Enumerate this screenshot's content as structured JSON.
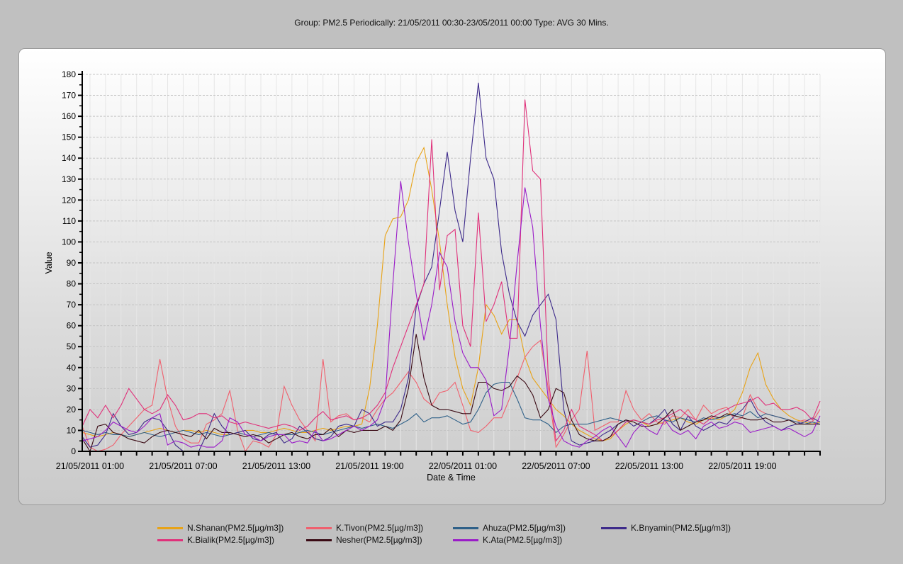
{
  "title": "Group:  PM2.5 Periodically:  21/05/2011 00:30-23/05/2011 00:00   Type:  AVG 30 Mins.",
  "chart_data": {
    "type": "line",
    "title": "Group:  PM2.5 Periodically:  21/05/2011 00:30-23/05/2011 00:00   Type:  AVG 30 Mins.",
    "xlabel": "Date & Time",
    "ylabel": "Value",
    "ylim": [
      0,
      180
    ],
    "y_major_step": 10,
    "y_minor_step": 5,
    "x_start": "21/05/2011 00:30",
    "x_interval_minutes": 30,
    "x_points": 96,
    "x_tick_labels": [
      {
        "index": 1,
        "label": "21/05/2011 01:00"
      },
      {
        "index": 13,
        "label": "21/05/2011 07:00"
      },
      {
        "index": 25,
        "label": "21/05/2011 13:00"
      },
      {
        "index": 37,
        "label": "21/05/2011 19:00"
      },
      {
        "index": 49,
        "label": "22/05/2011 01:00"
      },
      {
        "index": 61,
        "label": "22/05/2011 07:00"
      },
      {
        "index": 73,
        "label": "22/05/2011 13:00"
      },
      {
        "index": 85,
        "label": "22/05/2011 19:00"
      }
    ],
    "y_tick_labels": [
      "0",
      "10",
      "20",
      "30",
      "40",
      "50",
      "60",
      "70",
      "80",
      "90",
      "100",
      "110",
      "120",
      "130",
      "140",
      "150",
      "160",
      "170",
      "180"
    ],
    "grid": true,
    "legend_position": "bottom",
    "series": [
      {
        "name": "N.Shanan(PM2.5[µg/m3])",
        "color": "#e8a317",
        "values": [
          9,
          8,
          7,
          8,
          9,
          8,
          7,
          8,
          9,
          10,
          11,
          10,
          9,
          10,
          10,
          9,
          10,
          9,
          8,
          8,
          9,
          10,
          10,
          9,
          9,
          10,
          11,
          10,
          9,
          9,
          10,
          11,
          10,
          11,
          12,
          12,
          13,
          30,
          60,
          103,
          111,
          112,
          120,
          138,
          145,
          125,
          100,
          70,
          45,
          30,
          22,
          40,
          70,
          65,
          56,
          63,
          63,
          45,
          35,
          30,
          25,
          20,
          17,
          13,
          10,
          8,
          6,
          5,
          6,
          10,
          13,
          15,
          14,
          12,
          13,
          14,
          15,
          16,
          14,
          13,
          15,
          16,
          15,
          17,
          20,
          28,
          40,
          47,
          32,
          25,
          20,
          17,
          15,
          14,
          13,
          14
        ]
      },
      {
        "name": "K.Tivon(PM2.5[µg/m3])",
        "color": "#f0606e",
        "values": [
          12,
          2,
          0,
          1,
          3,
          8,
          12,
          16,
          20,
          22,
          44,
          25,
          12,
          6,
          4,
          4,
          13,
          15,
          18,
          29,
          10,
          0,
          5,
          4,
          2,
          8,
          31,
          22,
          15,
          10,
          5,
          44,
          14,
          17,
          18,
          15,
          16,
          14,
          20,
          25,
          28,
          33,
          38,
          33,
          25,
          22,
          28,
          29,
          33,
          22,
          10,
          9,
          12,
          16,
          16,
          25,
          35,
          45,
          50,
          53,
          30,
          2,
          8,
          15,
          20,
          48,
          10,
          12,
          14,
          14,
          29,
          20,
          15,
          18,
          14,
          13,
          17,
          16,
          20,
          15,
          22,
          18,
          20,
          21,
          15,
          16,
          27,
          20,
          18,
          17,
          16,
          15,
          14,
          15,
          14,
          20
        ]
      },
      {
        "name": "Ahuza(PM2.5[µg/m3])",
        "color": "#2e6088",
        "values": [
          10,
          9,
          8,
          9,
          8,
          8,
          7,
          8,
          9,
          8,
          7,
          8,
          9,
          10,
          9,
          8,
          9,
          8,
          7,
          8,
          9,
          8,
          7,
          8,
          9,
          8,
          8,
          8,
          9,
          10,
          9,
          8,
          9,
          10,
          11,
          12,
          11,
          12,
          13,
          12,
          11,
          13,
          15,
          18,
          14,
          16,
          16,
          17,
          15,
          13,
          14,
          20,
          28,
          32,
          33,
          33,
          25,
          16,
          15,
          15,
          13,
          9,
          12,
          13,
          13,
          13,
          14,
          15,
          16,
          15,
          14,
          15,
          14,
          16,
          17,
          15,
          14,
          16,
          15,
          14,
          16,
          15,
          16,
          17,
          18,
          17,
          19,
          16,
          18,
          17,
          16,
          15,
          14,
          13,
          14,
          13
        ]
      },
      {
        "name": "K.Bnyamin(PM2.5[µg/m3])",
        "color": "#3d2a8a",
        "values": [
          7,
          2,
          3,
          8,
          18,
          12,
          8,
          9,
          14,
          16,
          15,
          10,
          3,
          0,
          0,
          0,
          8,
          18,
          12,
          8,
          9,
          10,
          6,
          5,
          8,
          9,
          4,
          6,
          12,
          9,
          6,
          5,
          7,
          12,
          13,
          12,
          20,
          18,
          12,
          14,
          14,
          20,
          35,
          69,
          80,
          88,
          115,
          143,
          115,
          100,
          140,
          176,
          140,
          130,
          95,
          75,
          62,
          55,
          65,
          70,
          75,
          63,
          20,
          5,
          3,
          4,
          5,
          8,
          10,
          13,
          15,
          12,
          14,
          13,
          16,
          20,
          13,
          10,
          17,
          12,
          10,
          12,
          14,
          13,
          17,
          20,
          25,
          18,
          14,
          12,
          10,
          12,
          13,
          14,
          16,
          14
        ]
      },
      {
        "name": "K.Bialik(PM2.5[µg/m3])",
        "color": "#e0307a",
        "values": [
          12,
          20,
          16,
          22,
          16,
          22,
          30,
          25,
          20,
          18,
          20,
          27,
          22,
          15,
          16,
          18,
          18,
          16,
          17,
          14,
          13,
          14,
          13,
          12,
          11,
          12,
          13,
          12,
          10,
          12,
          16,
          19,
          15,
          16,
          17,
          15,
          16,
          18,
          22,
          28,
          40,
          50,
          60,
          70,
          80,
          149,
          77,
          103,
          106,
          60,
          50,
          114,
          62,
          70,
          81,
          54,
          54,
          168,
          134,
          130,
          35,
          5,
          10,
          20,
          12,
          10,
          8,
          5,
          7,
          10,
          14,
          15,
          14,
          13,
          15,
          16,
          18,
          20,
          17,
          15,
          13,
          16,
          18,
          20,
          22,
          23,
          24,
          26,
          22,
          23,
          20,
          20,
          21,
          19,
          15,
          24
        ]
      },
      {
        "name": "Nesher(PM2.5[µg/m3])",
        "color": "#3a0a14",
        "values": [
          6,
          0,
          12,
          13,
          9,
          8,
          6,
          5,
          4,
          7,
          9,
          10,
          9,
          8,
          7,
          10,
          6,
          11,
          9,
          9,
          8,
          7,
          8,
          7,
          4,
          6,
          8,
          9,
          7,
          6,
          8,
          8,
          11,
          7,
          10,
          9,
          10,
          10,
          10,
          12,
          10,
          15,
          30,
          56,
          35,
          22,
          20,
          20,
          19,
          18,
          18,
          33,
          33,
          30,
          29,
          31,
          36,
          33,
          27,
          16,
          20,
          30,
          28,
          15,
          8,
          6,
          5,
          5,
          7,
          13,
          15,
          14,
          12,
          12,
          13,
          16,
          20,
          10,
          12,
          14,
          15,
          17,
          16,
          18,
          17,
          16,
          15,
          15,
          16,
          14,
          14,
          15,
          13,
          13,
          13,
          13
        ]
      },
      {
        "name": "K.Ata(PM2.5[µg/m3])",
        "color": "#9a1cc8",
        "values": [
          5,
          6,
          7,
          10,
          14,
          12,
          10,
          9,
          12,
          16,
          18,
          3,
          5,
          4,
          2,
          3,
          2,
          2,
          5,
          16,
          14,
          8,
          7,
          5,
          7,
          8,
          8,
          4,
          5,
          4,
          10,
          5,
          6,
          8,
          10,
          12,
          10,
          12,
          15,
          25,
          80,
          129,
          100,
          75,
          53,
          70,
          95,
          88,
          62,
          47,
          40,
          40,
          34,
          17,
          20,
          50,
          90,
          126,
          107,
          60,
          25,
          12,
          5,
          3,
          2,
          5,
          7,
          10,
          12,
          7,
          2,
          9,
          13,
          10,
          8,
          15,
          10,
          8,
          10,
          6,
          12,
          14,
          11,
          12,
          14,
          13,
          9,
          10,
          11,
          12,
          10,
          11,
          9,
          7,
          9,
          17
        ]
      }
    ]
  },
  "legend_order": [
    0,
    1,
    2,
    3,
    4,
    5,
    6
  ]
}
